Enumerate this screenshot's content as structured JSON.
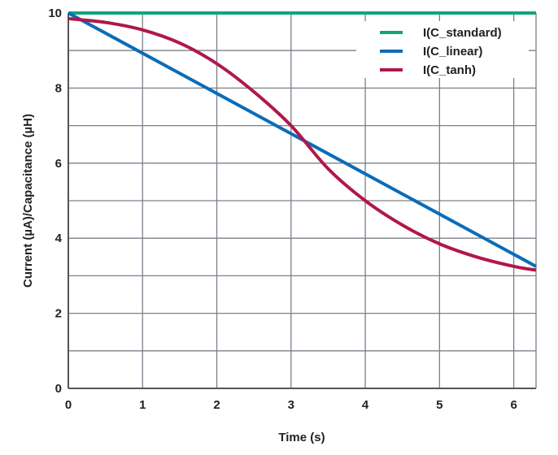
{
  "chart_data": {
    "type": "line",
    "title": "",
    "xlabel": "Time (s)",
    "ylabel": "Current (µA)/Capacitance (µH)",
    "xlim": [
      0,
      6.3
    ],
    "ylim": [
      0,
      10
    ],
    "xticks": [
      "0",
      "1",
      "2",
      "3",
      "4",
      "5",
      "6"
    ],
    "yticks": [
      "0",
      "2",
      "4",
      "6",
      "8",
      "10"
    ],
    "grid": true,
    "legend_position": "top-right",
    "series": [
      {
        "name": "I(C_standard)",
        "color": "#10a57a",
        "x": [
          0,
          6.3
        ],
        "y": [
          10,
          10
        ]
      },
      {
        "name": "I(C_linear)",
        "color": "#0a6cb8",
        "x": [
          0,
          6.3
        ],
        "y": [
          10,
          3.25
        ]
      },
      {
        "name": "I(C_tanh)",
        "color": "#b0174a",
        "x": [
          0,
          0.5,
          1,
          1.5,
          2,
          2.5,
          3,
          3.5,
          4,
          4.5,
          5,
          5.5,
          6,
          6.3
        ],
        "y": [
          9.85,
          9.75,
          9.55,
          9.2,
          8.65,
          7.9,
          7.0,
          5.85,
          5.0,
          4.35,
          3.85,
          3.5,
          3.25,
          3.15
        ]
      }
    ]
  }
}
